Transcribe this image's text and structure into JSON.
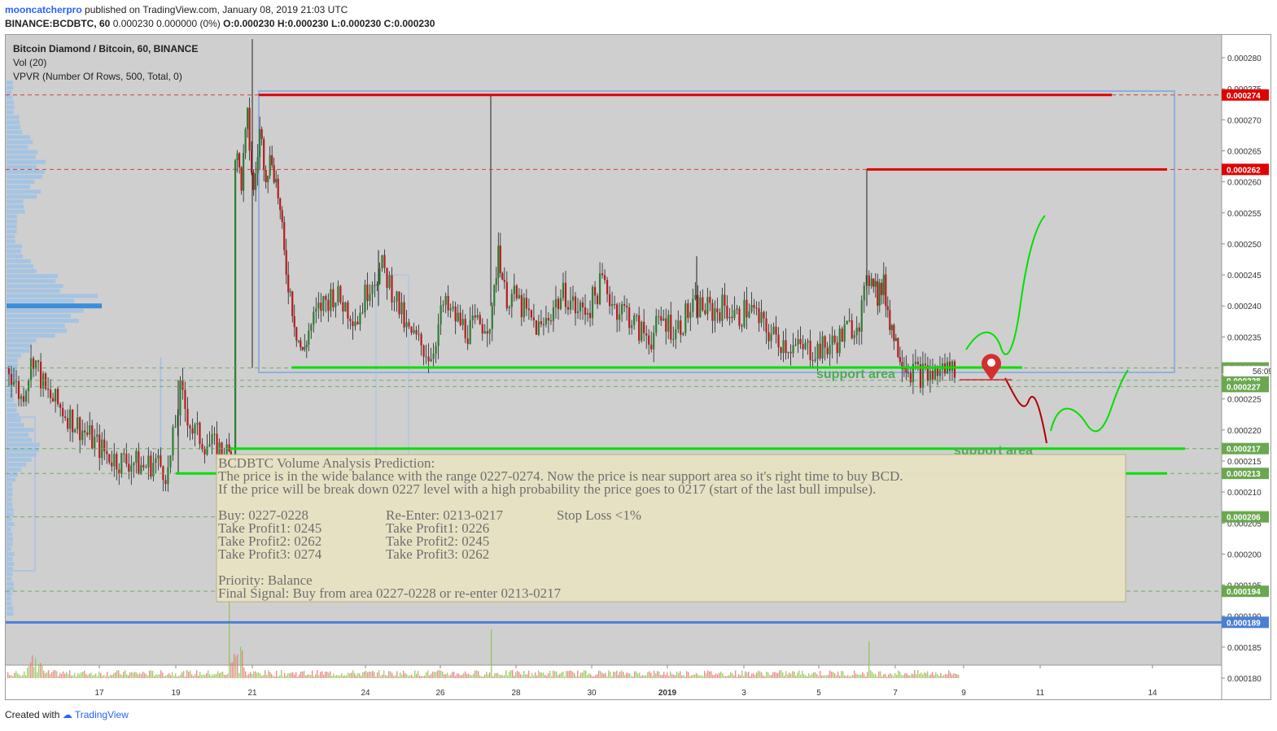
{
  "header": {
    "author": "mooncatcherpro",
    "published_text": "published on TradingView.com, January 08, 2019 21:03 UTC",
    "symbol_line": "BINANCE:BCDBTC, 60",
    "price_info": "0.000230 0.000000 (0%)",
    "ohlc": [
      "O:0.000230",
      "H:0.000230",
      "L:0.000230",
      "C:0.000230"
    ]
  },
  "legend": [
    "Bitcoin Diamond / Bitcoin, 60, BINANCE",
    "Vol (20)",
    "VPVR (Number Of Rows, 500, Total, 0)"
  ],
  "footer": {
    "created_with": "Created with",
    "brand": "TradingView"
  },
  "colors": {
    "background": "#cfcfcf",
    "up": "#2e7d32",
    "down": "#b71c1c",
    "red_level": "#e00000",
    "support": "#00e000",
    "blue": "#4a7fd4",
    "note_bg": "#e8e2c4",
    "annotation_green": "#4caf50"
  },
  "chart_data": {
    "type": "candlestick",
    "symbol": "BCDBTC",
    "timeframe": "60",
    "y_axis": {
      "range": [
        0.000175,
        0.000283
      ],
      "ticks": [
        "0.000280",
        "0.000275",
        "0.000270",
        "0.000265",
        "0.000260",
        "0.000255",
        "0.000250",
        "0.000245",
        "0.000240",
        "0.000235",
        "0.000230",
        "0.000225",
        "0.000220",
        "0.000215",
        "0.000210",
        "0.000205",
        "0.000200",
        "0.000195",
        "0.000190",
        "0.000185",
        "0.000180"
      ]
    },
    "x_axis": {
      "ticks": [
        "17",
        "19",
        "21",
        "24",
        "26",
        "28",
        "30",
        "2019",
        "3",
        "5",
        "7",
        "9",
        "11",
        "14"
      ]
    },
    "price_series": [
      [
        0,
        0.00023
      ],
      [
        2,
        0.000225
      ],
      [
        4,
        0.000232
      ],
      [
        6,
        0.000226
      ],
      [
        8,
        0.000224
      ],
      [
        10,
        0.000222
      ],
      [
        12,
        0.00022
      ],
      [
        14,
        0.000218
      ],
      [
        16,
        0.000216
      ],
      [
        18,
        0.000215
      ],
      [
        20,
        0.000215
      ],
      [
        22,
        0.000214
      ],
      [
        24,
        0.000215
      ],
      [
        26,
        0.000213
      ],
      [
        28,
        0.000226
      ],
      [
        30,
        0.00022
      ],
      [
        32,
        0.000218
      ],
      [
        34,
        0.000217
      ],
      [
        36,
        0.000216
      ],
      [
        36.6,
        0.000214
      ],
      [
        37,
        0.000265
      ],
      [
        38,
        0.00026
      ],
      [
        39,
        0.00027
      ],
      [
        40,
        0.000258
      ],
      [
        41,
        0.000268
      ],
      [
        42,
        0.000262
      ],
      [
        43,
        0.000264
      ],
      [
        44,
        0.000258
      ],
      [
        45,
        0.000248
      ],
      [
        46,
        0.000242
      ],
      [
        47,
        0.000236
      ],
      [
        48,
        0.000232
      ],
      [
        49,
        0.000236
      ],
      [
        51,
        0.00024
      ],
      [
        53,
        0.000242
      ],
      [
        55,
        0.00024
      ],
      [
        57,
        0.000238
      ],
      [
        59,
        0.000244
      ],
      [
        61,
        0.000246
      ],
      [
        63,
        0.000242
      ],
      [
        65,
        0.000236
      ],
      [
        67,
        0.000234
      ],
      [
        69,
        0.000232
      ],
      [
        71,
        0.00024
      ],
      [
        73,
        0.000238
      ],
      [
        75,
        0.000236
      ],
      [
        77,
        0.000237
      ],
      [
        79,
        0.000238
      ],
      [
        80,
        0.00025
      ],
      [
        81,
        0.000242
      ],
      [
        83,
        0.000241
      ],
      [
        85,
        0.000238
      ],
      [
        87,
        0.000236
      ],
      [
        89,
        0.00024
      ],
      [
        91,
        0.000242
      ],
      [
        93,
        0.000239
      ],
      [
        95,
        0.00024
      ],
      [
        97,
        0.000244
      ],
      [
        99,
        0.00024
      ],
      [
        101,
        0.000239
      ],
      [
        103,
        0.000236
      ],
      [
        105,
        0.000235
      ],
      [
        107,
        0.000238
      ],
      [
        109,
        0.000236
      ],
      [
        111,
        0.000239
      ],
      [
        113,
        0.00024
      ],
      [
        115,
        0.000239
      ],
      [
        117,
        0.00024
      ],
      [
        119,
        0.000238
      ],
      [
        121,
        0.00024
      ],
      [
        123,
        0.000237
      ],
      [
        125,
        0.000235
      ],
      [
        127,
        0.000234
      ],
      [
        129,
        0.000233
      ],
      [
        131,
        0.000233
      ],
      [
        133,
        0.000233
      ],
      [
        135,
        0.000234
      ],
      [
        137,
        0.000236
      ],
      [
        139,
        0.000238
      ],
      [
        141,
        0.000246
      ],
      [
        142,
        0.000242
      ],
      [
        143,
        0.000243
      ],
      [
        144,
        0.000238
      ],
      [
        145,
        0.000234
      ],
      [
        146,
        0.000232
      ],
      [
        147,
        0.00023
      ],
      [
        149,
        0.000229
      ],
      [
        151,
        0.000229
      ],
      [
        153,
        0.00023
      ],
      [
        155,
        0.00023
      ]
    ],
    "volume_profile_poc": 0.00024,
    "horizontal_levels": [
      {
        "price": 0.000274,
        "label": "0.000274",
        "color": "#e00000"
      },
      {
        "price": 0.000262,
        "label": "0.000262",
        "color": "#e00000"
      },
      {
        "price": 0.00023,
        "label": "0.000230",
        "color": "#6aa84f"
      },
      {
        "price": 0.000228,
        "label": "0.000228",
        "color": "#6aa84f"
      },
      {
        "price": 0.000227,
        "label": "0.000227",
        "color": "#6aa84f"
      },
      {
        "price": 0.000217,
        "label": "0.000217",
        "color": "#6aa84f"
      },
      {
        "price": 0.000213,
        "label": "0.000213",
        "color": "#6aa84f"
      },
      {
        "price": 0.000206,
        "label": "0.000206",
        "color": "#6aa84f"
      },
      {
        "price": 0.000194,
        "label": "0.000194",
        "color": "#6aa84f"
      },
      {
        "price": 0.000189,
        "label": "0.000189",
        "color": "#4a7fd4"
      }
    ],
    "countdown_label": "56:09",
    "annotations": [
      "support area",
      "support area"
    ]
  },
  "note": {
    "title": "BCDBTC Volume Analysis Prediction:",
    "line1": "The price is in the wide balance with the range 0227-0274. Now the price is near support area so it's right time to buy BCD.",
    "line2": "If the price will be break down 0227 level with a high probability the price goes to 0217 (start of the last bull impulse).",
    "buy": "Buy: 0227-0228",
    "reenter": "Re-Enter: 0213-0217",
    "stoploss": "Stop Loss <1%",
    "tp_a": [
      "Take Profit1: 0245",
      "Take Profit2: 0262",
      "Take Profit3: 0274"
    ],
    "tp_b": [
      "Take Profit1: 0226",
      "Take Profit2: 0245",
      "Take Profit3: 0262"
    ],
    "priority": "Priority: Balance",
    "final": "Final Signal: Buy from area 0227-0228 or re-enter 0213-0217"
  }
}
